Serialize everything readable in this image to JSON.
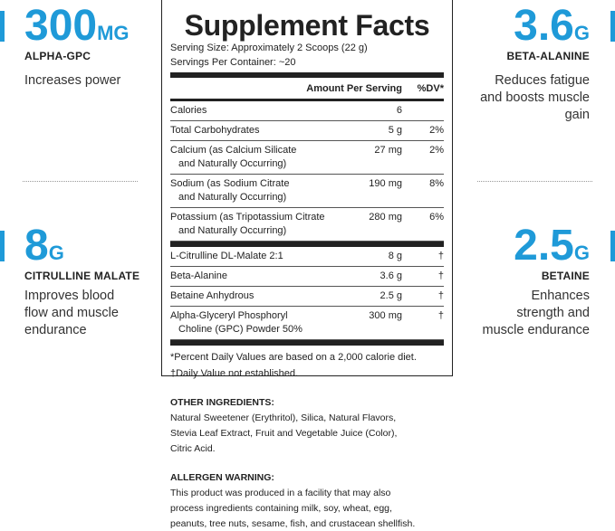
{
  "left_callouts": [
    {
      "value": "300",
      "unit": "MG",
      "name": "ALPHA-GPC",
      "description": [
        "Increases power"
      ]
    },
    {
      "value": "8",
      "unit": "G",
      "name": "CITRULLINE MALATE",
      "description": [
        "Improves blood",
        "flow and muscle",
        "endurance"
      ]
    }
  ],
  "right_callouts": [
    {
      "value": "3.6",
      "unit": "G",
      "name": "BETA-ALANINE",
      "description": [
        "Reduces fatigue",
        "and boosts muscle",
        "gain"
      ]
    },
    {
      "value": "2.5",
      "unit": "G",
      "name": "BETAINE",
      "description": [
        "Enhances",
        "strength and",
        "muscle endurance"
      ]
    }
  ],
  "facts": {
    "title": "Supplement Facts",
    "serving_size": "Serving Size: Approximately 2 Scoops (22 g)",
    "servings_per_container": "Servings Per Container: ~20",
    "header": [
      "Amount Per Serving",
      "%DV*"
    ],
    "rows": [
      {
        "name": [
          "Calories"
        ],
        "amount": "6",
        "dv": ""
      },
      {
        "name": [
          "Total Carbohydrates"
        ],
        "amount": "5 g",
        "dv": "2%"
      },
      {
        "name": [
          "Calcium (as Calcium Silicate",
          "and Naturally Occurring)"
        ],
        "amount": "27 mg",
        "dv": "2%"
      },
      {
        "name": [
          "Sodium (as Sodium Citrate",
          "and Naturally Occurring)"
        ],
        "amount": "190 mg",
        "dv": "8%"
      },
      {
        "name": [
          "Potassium (as Tripotassium Citrate",
          "and Naturally Occurring)"
        ],
        "amount": "280 mg",
        "dv": "6%"
      }
    ],
    "ingredient_rows": [
      {
        "name": [
          "L-Citrulline DL-Malate 2:1"
        ],
        "amount": "8 g",
        "dv": "†"
      },
      {
        "name": [
          "Beta-Alanine"
        ],
        "amount": "3.6 g",
        "dv": "†"
      },
      {
        "name": [
          "Betaine Anhydrous"
        ],
        "amount": "2.5 g",
        "dv": "†"
      },
      {
        "name": [
          "Alpha-Glyceryl Phosphoryl",
          "Choline (GPC) Powder 50%"
        ],
        "amount": "300 mg",
        "dv": "†"
      }
    ],
    "footnotes": [
      "*Percent Daily Values are based on a 2,000 calorie diet.",
      "†Daily Value not established."
    ]
  },
  "other_ingredients": {
    "heading": "OTHER INGREDIENTS:",
    "lines": [
      "Natural Sweetener (Erythritol), Silica, Natural Flavors,",
      "Stevia Leaf Extract, Fruit and Vegetable Juice (Color),",
      "Citric Acid."
    ]
  },
  "allergen_warning": {
    "heading": "ALLERGEN WARNING:",
    "lines": [
      "This product was produced in a facility that may also",
      "process ingredients containing milk, soy, wheat, egg,",
      "peanuts, tree nuts, sesame, fish, and crustacean shellfish."
    ]
  }
}
